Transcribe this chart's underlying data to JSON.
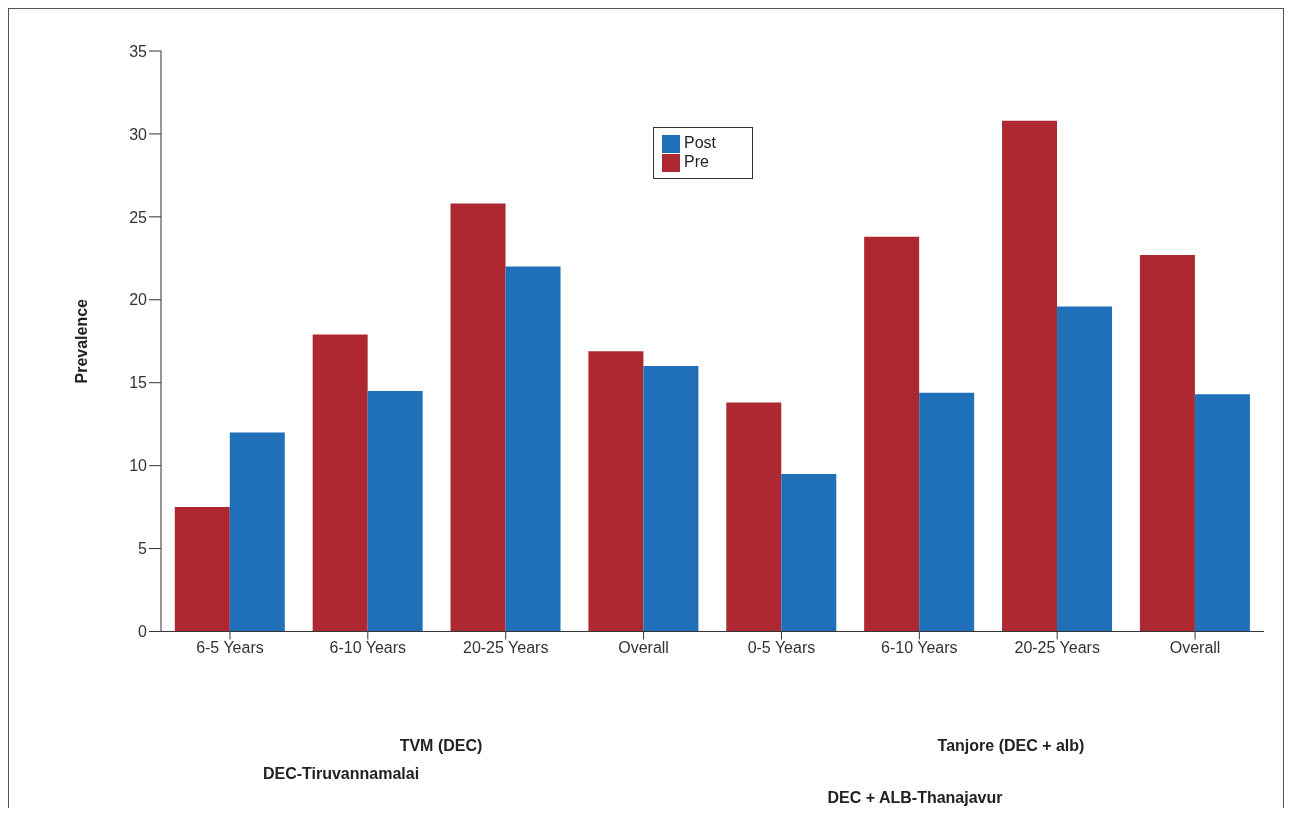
{
  "chart_data": {
    "type": "bar",
    "ylabel": "Prevalence",
    "categories": [
      "6-5 Years",
      "6-10 Years",
      "20-25 Years",
      "Overall",
      "0-5 Years",
      "6-10 Years",
      "20-25 Years",
      "Overall"
    ],
    "series": [
      {
        "name": "Pre",
        "color": "#ad2830",
        "values": [
          7.5,
          17.9,
          25.8,
          16.9,
          13.8,
          23.8,
          30.8,
          22.7
        ]
      },
      {
        "name": "Post",
        "color": "#1f70b8",
        "values": [
          12.0,
          14.5,
          22.0,
          16.0,
          9.5,
          14.4,
          19.6,
          14.3
        ]
      }
    ],
    "ylim": [
      0,
      35
    ],
    "yticks": [
      0,
      5,
      10,
      15,
      20,
      25,
      30,
      35
    ],
    "grid": false,
    "legend": "top",
    "annotations": [
      "TVM (DEC)",
      "Tanjore (DEC + alb)",
      "DEC-Tiruvannamalai",
      "DEC + ALB-Thanajavur"
    ]
  }
}
